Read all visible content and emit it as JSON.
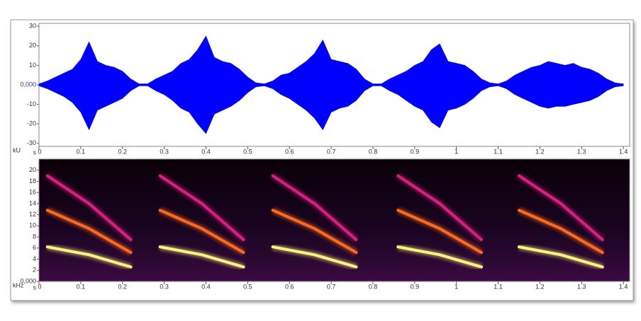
{
  "chart_data": [
    {
      "type": "area",
      "y_label": "kU",
      "x_label": "s",
      "x": [
        0,
        0.02,
        0.04,
        0.06,
        0.08,
        0.1,
        0.12,
        0.14,
        0.16,
        0.18,
        0.2,
        0.22,
        0.24,
        0.26,
        0.28,
        0.3,
        0.32,
        0.34,
        0.36,
        0.38,
        0.4,
        0.42,
        0.44,
        0.46,
        0.48,
        0.5,
        0.52,
        0.54,
        0.56,
        0.58,
        0.6,
        0.62,
        0.64,
        0.66,
        0.68,
        0.7,
        0.72,
        0.74,
        0.76,
        0.78,
        0.8,
        0.82,
        0.84,
        0.86,
        0.88,
        0.9,
        0.92,
        0.94,
        0.96,
        0.98,
        1,
        1.02,
        1.04,
        1.06,
        1.08,
        1.1,
        1.12,
        1.14,
        1.16,
        1.18,
        1.2,
        1.22,
        1.24,
        1.26,
        1.28,
        1.3,
        1.32,
        1.34,
        1.36,
        1.38,
        1.4
      ],
      "series": [
        {
          "color": "#0000ff",
          "values": [
            0.5,
            2,
            4,
            6,
            8,
            13,
            22,
            12,
            10,
            9,
            7,
            3,
            0.5,
            0.5,
            3,
            5,
            7,
            11,
            13,
            18,
            25,
            14,
            12,
            11,
            8,
            4,
            1,
            0.5,
            2,
            5,
            6,
            9,
            12,
            16,
            23,
            13,
            12,
            11,
            8,
            3,
            0.5,
            0.5,
            3,
            5,
            7,
            10,
            12,
            18,
            21,
            12,
            11,
            10,
            7,
            3,
            1,
            0.5,
            2,
            5,
            7,
            9,
            10,
            12,
            11,
            10,
            11,
            9,
            8,
            6,
            3,
            1,
            0.5
          ]
        },
        {
          "color": "#0000ff",
          "values": [
            -0.5,
            -2,
            -4,
            -6,
            -9,
            -14,
            -23,
            -13,
            -11,
            -9,
            -7,
            -3,
            -0.5,
            -0.5,
            -3,
            -5,
            -8,
            -12,
            -14,
            -20,
            -25,
            -15,
            -13,
            -11,
            -8,
            -4,
            -1,
            -0.5,
            -2,
            -5,
            -7,
            -10,
            -13,
            -17,
            -23,
            -14,
            -12,
            -11,
            -8,
            -3,
            -0.5,
            -0.5,
            -3,
            -5,
            -8,
            -11,
            -13,
            -19,
            -22,
            -13,
            -12,
            -10,
            -7,
            -3,
            -1,
            -0.5,
            -2,
            -5,
            -7,
            -9,
            -11,
            -12,
            -11,
            -11,
            -10,
            -9,
            -8,
            -6,
            -3,
            -1,
            -0.5
          ]
        }
      ],
      "xlim": [
        0,
        1.415
      ],
      "xticks": [
        0,
        0.1,
        0.2,
        0.3,
        0.4,
        0.5,
        0.6,
        0.7,
        0.8,
        0.9,
        1,
        1.1,
        1.2,
        1.3,
        1.4
      ],
      "ylim": [
        -31.5,
        31.5
      ],
      "yticks": [
        -30,
        -20,
        -10,
        {
          "value": 0,
          "label": "0,000"
        },
        10,
        20,
        30
      ]
    },
    {
      "type": "line",
      "y_label": "kHz",
      "x_label": "s",
      "x": [
        0.02,
        0.12,
        0.22,
        0.23,
        0.29,
        0.39,
        0.49,
        0.5,
        0.56,
        0.66,
        0.76,
        0.77,
        0.86,
        0.96,
        1.06,
        1.07,
        1.15,
        1.25,
        1.35
      ],
      "series": [
        {
          "color": "#fff27a",
          "values": [
            6.2,
            4.8,
            2.6,
            null,
            6.2,
            4.8,
            2.6,
            null,
            6.2,
            4.8,
            2.6,
            null,
            6.2,
            4.8,
            2.6,
            null,
            6.2,
            4.8,
            2.6
          ]
        },
        {
          "color": "#ff6a1a",
          "values": [
            12.8,
            9.5,
            5.2,
            null,
            12.8,
            9.5,
            5.2,
            null,
            12.8,
            9.5,
            5.2,
            null,
            12.8,
            9.5,
            5.2,
            null,
            12.8,
            9.5,
            5.2
          ]
        },
        {
          "color": "#d81e7e",
          "values": [
            19,
            14,
            7.5,
            null,
            19,
            14,
            7.5,
            null,
            19,
            14,
            7.5,
            null,
            19,
            14,
            7.5,
            null,
            19,
            14,
            7.5
          ]
        }
      ],
      "xlim": [
        0,
        1.415
      ],
      "xticks": [
        0,
        0.1,
        0.2,
        0.3,
        0.4,
        0.5,
        0.6,
        0.7,
        0.8,
        0.9,
        1,
        1.1,
        1.2,
        1.3,
        1.4
      ],
      "ylim": [
        0,
        22
      ],
      "yticks": [
        {
          "value": 0,
          "label": "0,000"
        },
        2,
        4,
        6,
        8,
        10,
        12,
        14,
        16,
        18,
        20
      ]
    }
  ]
}
